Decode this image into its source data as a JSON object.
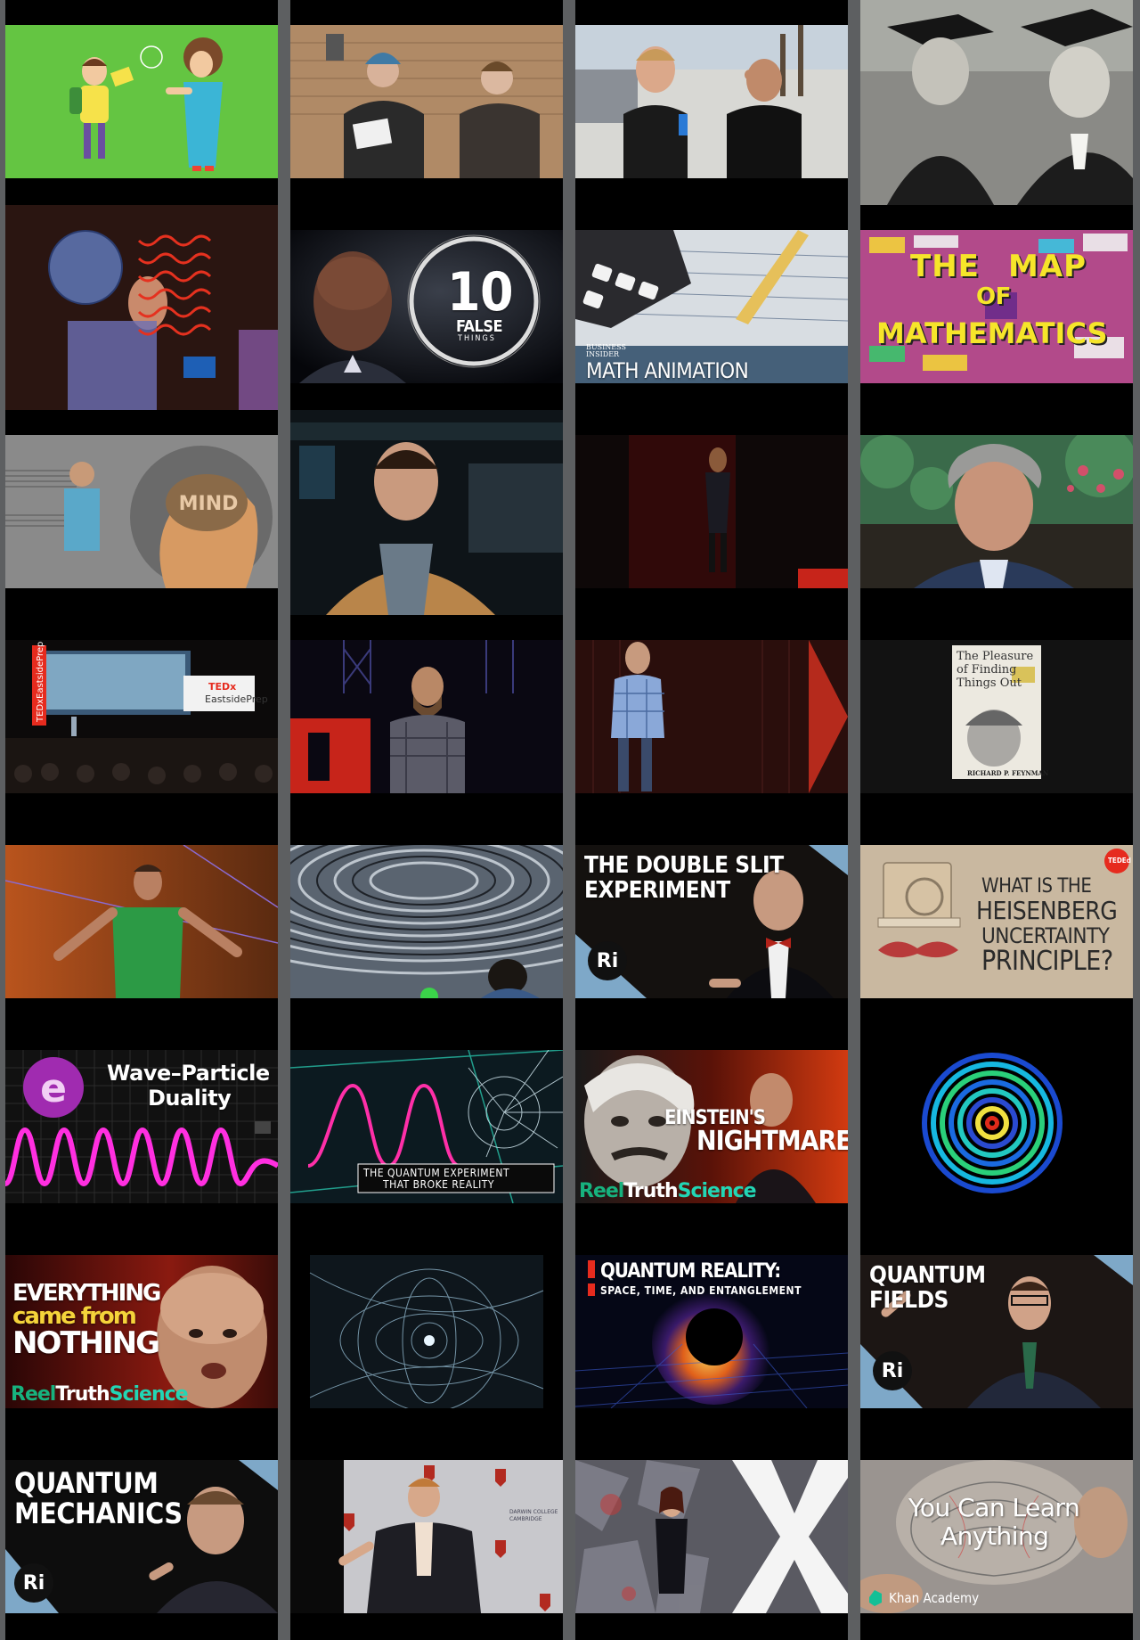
{
  "colors": {
    "background_gutter": "#5d5f61",
    "column_background": "#000000",
    "reel_truth_green": "#17b27e",
    "ri_badge": "#111111",
    "ted_red": "#e62b1e"
  },
  "columns": [
    {
      "tiles": [
        {
          "id": "c1t1",
          "desc": "cartoon-kid-and-teacher"
        },
        {
          "id": "c1t2",
          "desc": "hologram-head"
        },
        {
          "id": "c1t3",
          "desc": "music-mind"
        },
        {
          "id": "c1t4",
          "desc": "tedx-eastsideprep-stage"
        },
        {
          "id": "c1t5",
          "desc": "speaker-green-shirt"
        },
        {
          "id": "c1t6",
          "desc": "wave-particle-duality"
        },
        {
          "id": "c1t7",
          "desc": "everything-came-from-nothing"
        },
        {
          "id": "c1t8",
          "desc": "quantum-mechanics-ri"
        }
      ]
    },
    {
      "tiles": [
        {
          "id": "c2t1",
          "desc": "two-teens-street"
        },
        {
          "id": "c2t2",
          "desc": "10-false-things"
        },
        {
          "id": "c2t3",
          "desc": "man-tan-jacket"
        },
        {
          "id": "c2t4",
          "desc": "ted-bearded-speaker"
        },
        {
          "id": "c2t5",
          "desc": "ripple-pattern"
        },
        {
          "id": "c2t6",
          "desc": "quantum-experiment-broke-reality"
        },
        {
          "id": "c2t7",
          "desc": "field-lines-sphere"
        },
        {
          "id": "c2t8",
          "desc": "darwin-college-lecture"
        }
      ]
    },
    {
      "tiles": [
        {
          "id": "c3t1",
          "desc": "beach-interview"
        },
        {
          "id": "c3t2",
          "desc": "math-animation-calculator"
        },
        {
          "id": "c3t3",
          "desc": "ted-woman-dark-stage"
        },
        {
          "id": "c3t4",
          "desc": "ted-plaid-speaker"
        },
        {
          "id": "c3t5",
          "desc": "double-slit-ri"
        },
        {
          "id": "c3t6",
          "desc": "einsteins-nightmare"
        },
        {
          "id": "c3t7",
          "desc": "quantum-reality-entanglement"
        },
        {
          "id": "c3t8",
          "desc": "tedx-woman-silver-x"
        }
      ]
    },
    {
      "tiles": [
        {
          "id": "c4t1",
          "desc": "graduates-bw"
        },
        {
          "id": "c4t2",
          "desc": "map-of-mathematics"
        },
        {
          "id": "c4t3",
          "desc": "feynman-interview"
        },
        {
          "id": "c4t4",
          "desc": "feynman-book-cover"
        },
        {
          "id": "c4t5",
          "desc": "heisenberg-uncertainty"
        },
        {
          "id": "c4t6",
          "desc": "interference-rings"
        },
        {
          "id": "c4t7",
          "desc": "quantum-fields-ri"
        },
        {
          "id": "c4t8",
          "desc": "khan-academy-brain"
        }
      ]
    }
  ],
  "texts": {
    "false_things_number": "10",
    "false_things_word": "FALSE",
    "false_things_sub": "THINGS",
    "bi_line1": "BUSINESS",
    "bi_line2": "INSIDER",
    "math_animation": "MATH ANIMATION",
    "map_line1": "THE",
    "map_line2": "MAP",
    "map_line3": "OF",
    "map_line4": "MATHEMATICS",
    "mind_word": "MIND",
    "tedx_vertical": "TEDxEastsidePrep",
    "tedx_sign_line1": "TEDx",
    "tedx_sign_line2": "EastsidePrep",
    "book_title_line1": "The Pleasure",
    "book_title_line2": "of Finding",
    "book_title_line3": "Things Out",
    "book_author": "RICHARD P. FEYNMAN",
    "double_slit_line1": "THE DOUBLE SLIT",
    "double_slit_line2": "EXPERIMENT",
    "ri_badge": "Ri",
    "heisenberg_line1": "WHAT IS THE",
    "heisenberg_line2": "HEISENBERG",
    "heisenberg_line3": "UNCERTAINTY",
    "heisenberg_line4": "PRINCIPLE?",
    "ted_ed": "TEDEd",
    "wave_line1": "Wave–Particle",
    "wave_line2": "Duality",
    "e_logo": "e",
    "quantum_exp_line1": "THE QUANTUM EXPERIMENT",
    "quantum_exp_line2": "THAT BROKE REALITY",
    "einstein_line1": "EINSTEIN'S",
    "einstein_line2": "NIGHTMARE",
    "reel_1": "Reel",
    "reel_2": "Truth",
    "reel_3": "Science",
    "nothing_line1": "EVERYTHING",
    "nothing_line2": "came from",
    "nothing_line3": "NOTHING",
    "qreality_line1": "QUANTUM REALITY:",
    "qreality_line2": "SPACE, TIME, AND ENTANGLEMENT",
    "qfields_line1": "QUANTUM",
    "qfields_line2": "FIELDS",
    "qmech_line1": "QUANTUM",
    "qmech_line2": "MECHANICS",
    "darwin_1": "DARWIN COLLEGE",
    "darwin_2": "CAMBRIDGE",
    "khan_line1": "You Can Learn",
    "khan_line2": "Anything",
    "khan_brand": "Khan Academy"
  }
}
